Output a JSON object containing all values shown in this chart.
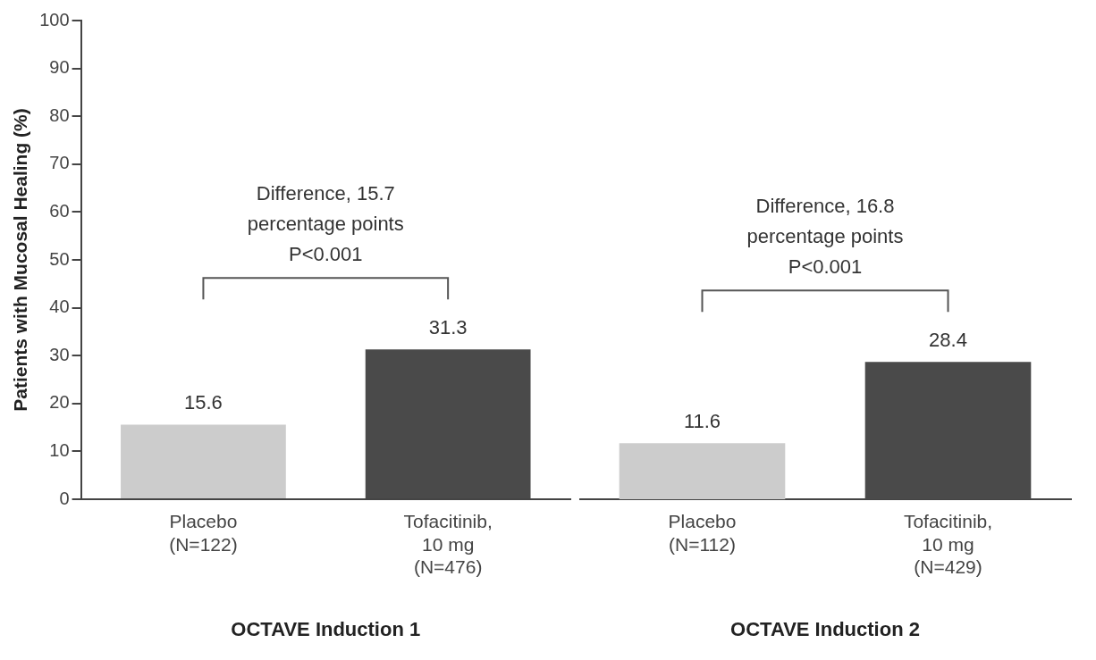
{
  "chart_data": [
    {
      "type": "bar",
      "ylabel": "Patients with Mucosal Healing (%)",
      "xlabel": "OCTAVE Induction 1",
      "categories": [
        "Placebo\n(N=122)",
        "Tofacitinib,\n10 mg\n(N=476)"
      ],
      "values": [
        15.6,
        31.3
      ],
      "colors": [
        "#cccccc",
        "#4a4a4a"
      ],
      "ylim": [
        0,
        100
      ],
      "yticks": [
        0,
        10,
        20,
        30,
        40,
        50,
        60,
        70,
        80,
        90,
        100
      ],
      "grid": false,
      "legend": false,
      "data_labels": true,
      "annotations": [
        "Difference, 15.7",
        "percentage points",
        "P<0.001"
      ]
    },
    {
      "type": "bar",
      "xlabel": "OCTAVE Induction 2",
      "categories": [
        "Placebo\n(N=112)",
        "Tofacitinib,\n10 mg\n(N=429)"
      ],
      "values": [
        11.6,
        28.4
      ],
      "colors": [
        "#cccccc",
        "#4a4a4a"
      ],
      "ylim": [
        0,
        100
      ],
      "yticks": [
        0,
        10,
        20,
        30,
        40,
        50,
        60,
        70,
        80,
        90,
        100
      ],
      "grid": false,
      "legend": false,
      "data_labels": true,
      "tick_labels": "x",
      "annotations": [
        "Difference, 16.8",
        "percentage points",
        "P<0.001"
      ]
    }
  ]
}
